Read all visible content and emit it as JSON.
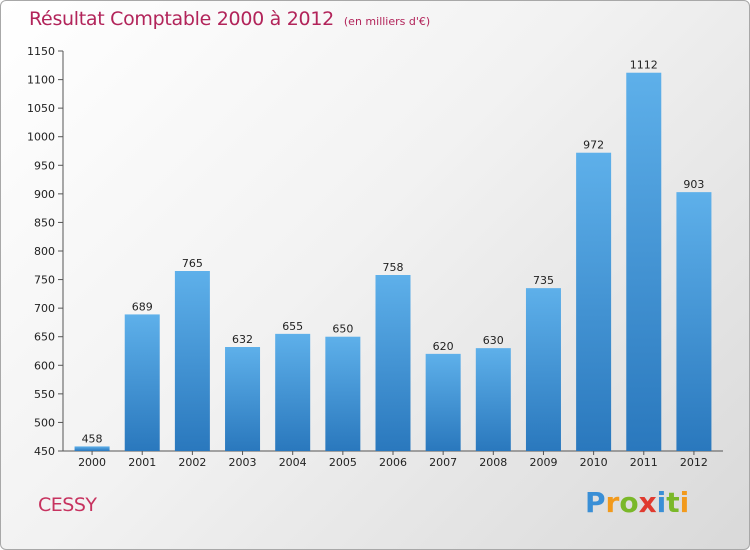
{
  "header": {
    "title": "Résultat Comptable 2000 à 2012",
    "unit": "(en milliers d'€)"
  },
  "footer": {
    "commune": "CESSY",
    "logo_parts": [
      "P",
      "r",
      "o",
      "x",
      "i",
      "t",
      "i"
    ]
  },
  "colors": {
    "bar_light": "#5eb0ea",
    "bar_dark": "#2a78bd",
    "title": "#b2245a",
    "axis": "#555555"
  },
  "chart_data": {
    "type": "bar",
    "title": "Résultat Comptable 2000 à 2012",
    "xlabel": "",
    "ylabel": "",
    "categories": [
      "2000",
      "2001",
      "2002",
      "2003",
      "2004",
      "2005",
      "2006",
      "2007",
      "2008",
      "2009",
      "2010",
      "2011",
      "2012"
    ],
    "values": [
      458,
      689,
      765,
      632,
      655,
      650,
      758,
      620,
      630,
      735,
      972,
      1112,
      903
    ],
    "ylim": [
      450,
      1150
    ],
    "yticks": [
      450,
      500,
      550,
      600,
      650,
      700,
      750,
      800,
      850,
      900,
      950,
      1000,
      1050,
      1100,
      1150
    ],
    "grid": false,
    "legend": "none"
  }
}
